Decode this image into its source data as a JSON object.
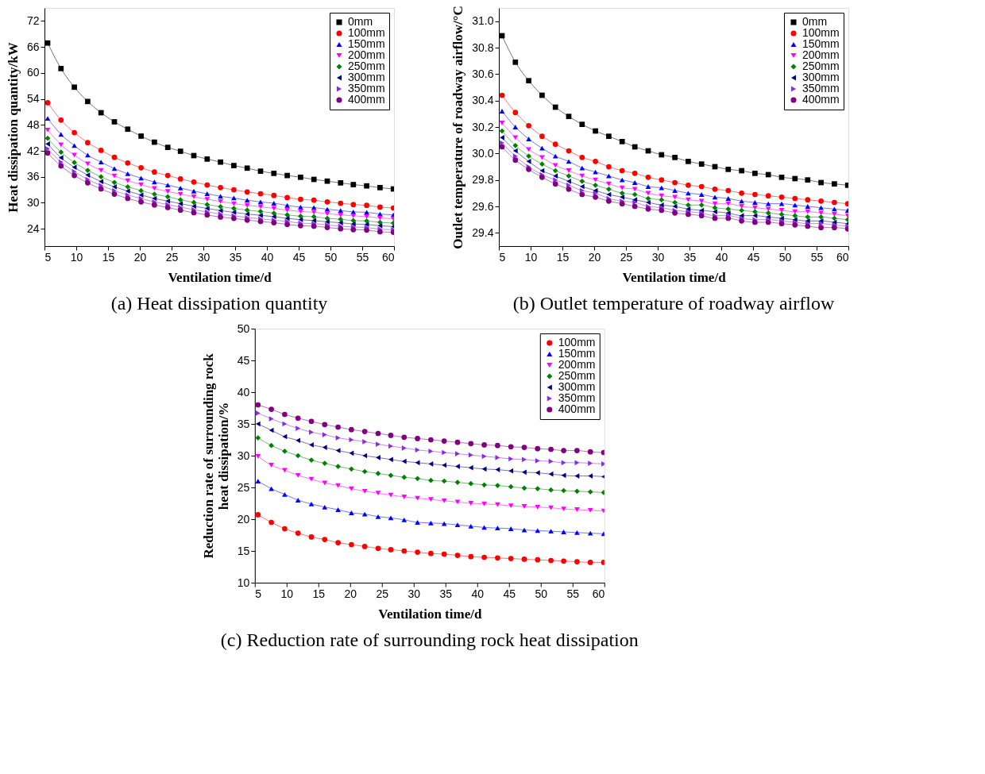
{
  "chart_data": [
    {
      "type": "line",
      "title": "(a) Heat dissipation quantity",
      "xlabel": "Ventilation time/d",
      "ylabel": "Heat dissipation quantity/kW",
      "xlim": [
        5,
        60
      ],
      "xticks": [
        5,
        10,
        15,
        20,
        25,
        30,
        35,
        40,
        45,
        50,
        55,
        60
      ],
      "ylim": [
        20,
        75
      ],
      "yticks": [
        24,
        30,
        36,
        42,
        48,
        54,
        60,
        66,
        72
      ],
      "grid": false,
      "legend": "top right",
      "x": [
        5.5,
        7.6,
        9.7,
        11.8,
        13.9,
        16.0,
        18.1,
        20.2,
        22.3,
        24.4,
        26.4,
        28.5,
        30.6,
        32.7,
        34.8,
        36.9,
        39.0,
        41.1,
        43.2,
        45.3,
        47.4,
        49.5,
        51.6,
        53.6,
        55.7,
        57.8,
        59.9
      ],
      "series": [
        {
          "name": "0mm",
          "color": "#000000",
          "marker": "square",
          "values": [
            66.9,
            61.0,
            56.7,
            53.4,
            50.8,
            48.7,
            47.0,
            45.4,
            44.0,
            42.8,
            41.9,
            40.9,
            40.1,
            39.4,
            38.6,
            38.0,
            37.3,
            36.8,
            36.3,
            35.9,
            35.4,
            35.0,
            34.6,
            34.2,
            33.9,
            33.5,
            33.2
          ]
        },
        {
          "name": "100mm",
          "color": "#ff0000",
          "marker": "circle",
          "values": [
            53.1,
            49.1,
            46.2,
            43.9,
            42.1,
            40.5,
            39.2,
            38.1,
            37.1,
            36.3,
            35.5,
            34.8,
            34.1,
            33.5,
            33.0,
            32.5,
            32.1,
            31.7,
            31.2,
            30.8,
            30.6,
            30.2,
            29.9,
            29.6,
            29.4,
            29.0,
            28.8
          ]
        },
        {
          "name": "150mm",
          "color": "#0000ff",
          "marker": "triangle-up",
          "values": [
            49.5,
            45.8,
            43.2,
            41.0,
            39.4,
            37.9,
            36.7,
            35.7,
            34.8,
            34.1,
            33.4,
            32.7,
            32.1,
            31.5,
            31.1,
            30.6,
            30.2,
            29.9,
            29.4,
            29.0,
            28.9,
            28.5,
            28.2,
            27.9,
            27.8,
            27.4,
            27.2
          ]
        },
        {
          "name": "200mm",
          "color": "#ff00ff",
          "marker": "triangle-down",
          "values": [
            46.8,
            43.4,
            41.0,
            39.0,
            37.5,
            36.2,
            35.1,
            34.2,
            33.3,
            32.6,
            32.0,
            31.4,
            30.8,
            30.3,
            29.8,
            29.4,
            29.1,
            28.7,
            28.3,
            28.0,
            27.8,
            27.5,
            27.2,
            27.0,
            26.8,
            26.5,
            26.3
          ]
        },
        {
          "name": "250mm",
          "color": "#008000",
          "marker": "diamond",
          "values": [
            44.9,
            41.7,
            39.3,
            37.5,
            36.0,
            34.7,
            33.7,
            32.8,
            32.0,
            31.4,
            30.7,
            30.1,
            29.6,
            29.1,
            28.7,
            28.3,
            28.0,
            27.6,
            27.2,
            26.9,
            26.8,
            26.4,
            26.2,
            25.9,
            25.8,
            25.5,
            25.3
          ]
        },
        {
          "name": "300mm",
          "color": "#000080",
          "marker": "triangle-left",
          "values": [
            43.6,
            40.4,
            38.2,
            36.4,
            34.9,
            33.7,
            32.7,
            31.8,
            31.0,
            30.4,
            29.8,
            29.2,
            28.7,
            28.2,
            27.8,
            27.4,
            27.1,
            26.8,
            26.4,
            26.1,
            25.9,
            25.6,
            25.4,
            25.1,
            25.0,
            24.7,
            24.5
          ]
        },
        {
          "name": "350mm",
          "color": "#8a2be2",
          "marker": "triangle-right",
          "values": [
            42.5,
            39.4,
            37.2,
            35.4,
            34.0,
            32.8,
            31.8,
            31.0,
            30.2,
            29.6,
            29.0,
            28.4,
            27.9,
            27.4,
            27.0,
            26.6,
            26.3,
            26.0,
            25.7,
            25.3,
            25.2,
            24.9,
            24.6,
            24.4,
            24.3,
            23.9,
            23.8
          ]
        },
        {
          "name": "400mm",
          "color": "#800080",
          "marker": "circle",
          "values": [
            41.5,
            38.5,
            36.3,
            34.6,
            33.2,
            32.0,
            31.0,
            30.2,
            29.5,
            28.9,
            28.3,
            27.7,
            27.2,
            26.7,
            26.4,
            26.0,
            25.7,
            25.4,
            25.0,
            24.7,
            24.6,
            24.3,
            24.0,
            23.8,
            23.7,
            23.3,
            23.2
          ]
        }
      ]
    },
    {
      "type": "line",
      "title": "(b) Outlet temperature of roadway airflow",
      "xlabel": "Ventilation time/d",
      "ylabel": "Outlet temperature of roadway airflow/°C",
      "xlim": [
        5,
        60
      ],
      "xticks": [
        5,
        10,
        15,
        20,
        25,
        30,
        35,
        40,
        45,
        50,
        55,
        60
      ],
      "ylim": [
        29.3,
        31.1
      ],
      "yticks": [
        {
          "value": 29.4,
          "label": "29.4"
        },
        {
          "value": 29.6,
          "label": "29.6"
        },
        {
          "value": 29.8,
          "label": "29.8"
        },
        {
          "value": 30.0,
          "label": "30.0"
        },
        {
          "value": 30.2,
          "label": "30.2"
        },
        {
          "value": 30.4,
          "label": "30.4"
        },
        {
          "value": 30.6,
          "label": "30.6"
        },
        {
          "value": 30.8,
          "label": "30.8"
        },
        {
          "value": 31.0,
          "label": "31.0"
        }
      ],
      "grid": false,
      "legend": "top right",
      "x": [
        5.5,
        7.6,
        9.7,
        11.8,
        13.9,
        16.0,
        18.1,
        20.2,
        22.3,
        24.4,
        26.4,
        28.5,
        30.6,
        32.7,
        34.8,
        36.9,
        39.0,
        41.1,
        43.2,
        45.3,
        47.4,
        49.5,
        51.6,
        53.6,
        55.7,
        57.8,
        59.9
      ],
      "series": [
        {
          "name": "0mm",
          "color": "#000000",
          "marker": "square",
          "values": [
            30.89,
            30.69,
            30.55,
            30.44,
            30.35,
            30.28,
            30.22,
            30.17,
            30.13,
            30.09,
            30.05,
            30.02,
            29.99,
            29.97,
            29.94,
            29.92,
            29.9,
            29.88,
            29.87,
            29.85,
            29.84,
            29.82,
            29.81,
            29.8,
            29.78,
            29.77,
            29.76
          ]
        },
        {
          "name": "100mm",
          "color": "#ff0000",
          "marker": "circle",
          "values": [
            30.44,
            30.31,
            30.21,
            30.13,
            30.07,
            30.02,
            29.97,
            29.94,
            29.9,
            29.87,
            29.85,
            29.82,
            29.8,
            29.78,
            29.76,
            29.75,
            29.73,
            29.72,
            29.7,
            29.69,
            29.68,
            29.67,
            29.66,
            29.65,
            29.64,
            29.63,
            29.62
          ]
        },
        {
          "name": "150mm",
          "color": "#0000ff",
          "marker": "triangle-up",
          "values": [
            30.32,
            30.2,
            30.11,
            30.04,
            29.98,
            29.94,
            29.89,
            29.86,
            29.83,
            29.8,
            29.78,
            29.75,
            29.74,
            29.72,
            29.7,
            29.69,
            29.67,
            29.66,
            29.64,
            29.63,
            29.62,
            29.62,
            29.61,
            29.6,
            29.59,
            29.58,
            29.57
          ]
        },
        {
          "name": "200mm",
          "color": "#ff00ff",
          "marker": "triangle-down",
          "values": [
            30.23,
            30.12,
            30.03,
            29.97,
            29.91,
            29.87,
            29.83,
            29.8,
            29.77,
            29.74,
            29.73,
            29.7,
            29.68,
            29.67,
            29.65,
            29.64,
            29.62,
            29.62,
            29.6,
            29.59,
            29.58,
            29.57,
            29.56,
            29.56,
            29.55,
            29.54,
            29.53
          ]
        },
        {
          "name": "250mm",
          "color": "#008000",
          "marker": "diamond",
          "values": [
            30.17,
            30.06,
            29.98,
            29.92,
            29.87,
            29.83,
            29.79,
            29.76,
            29.73,
            29.7,
            29.69,
            29.66,
            29.65,
            29.63,
            29.61,
            29.61,
            29.59,
            29.58,
            29.57,
            29.56,
            29.55,
            29.54,
            29.53,
            29.52,
            29.52,
            29.51,
            29.5
          ]
        },
        {
          "name": "300mm",
          "color": "#000080",
          "marker": "triangle-left",
          "values": [
            30.12,
            30.02,
            29.94,
            29.87,
            29.83,
            29.79,
            29.75,
            29.72,
            29.69,
            29.67,
            29.65,
            29.63,
            29.61,
            29.6,
            29.58,
            29.57,
            29.56,
            29.55,
            29.53,
            29.53,
            29.52,
            29.51,
            29.5,
            29.49,
            29.49,
            29.48,
            29.47
          ]
        },
        {
          "name": "350mm",
          "color": "#8a2be2",
          "marker": "triangle-right",
          "values": [
            30.08,
            29.98,
            29.9,
            29.84,
            29.8,
            29.76,
            29.72,
            29.7,
            29.66,
            29.64,
            29.63,
            29.6,
            29.59,
            29.57,
            29.56,
            29.55,
            29.53,
            29.53,
            29.51,
            29.5,
            29.5,
            29.49,
            29.48,
            29.47,
            29.47,
            29.46,
            29.45
          ]
        },
        {
          "name": "400mm",
          "color": "#800080",
          "marker": "circle",
          "values": [
            30.05,
            29.95,
            29.88,
            29.82,
            29.77,
            29.73,
            29.69,
            29.67,
            29.64,
            29.62,
            29.6,
            29.58,
            29.57,
            29.55,
            29.54,
            29.53,
            29.51,
            29.51,
            29.49,
            29.48,
            29.48,
            29.47,
            29.46,
            29.45,
            29.44,
            29.44,
            29.43
          ]
        }
      ]
    },
    {
      "type": "line",
      "title": "(c) Reduction rate of surrounding rock heat dissipation",
      "xlabel": "Ventilation time/d",
      "ylabel": "Reduction rate of surrounding rock\nheat dissipation/%",
      "xlim": [
        5,
        60
      ],
      "xticks": [
        5,
        10,
        15,
        20,
        25,
        30,
        35,
        40,
        45,
        50,
        55,
        60
      ],
      "ylim": [
        10,
        50
      ],
      "yticks": [
        10,
        15,
        20,
        25,
        30,
        35,
        40,
        45,
        50
      ],
      "grid": false,
      "legend": "top right",
      "x": [
        5.5,
        7.6,
        9.7,
        11.8,
        13.9,
        16.0,
        18.1,
        20.2,
        22.3,
        24.4,
        26.4,
        28.5,
        30.6,
        32.7,
        34.8,
        36.9,
        39.0,
        41.1,
        43.2,
        45.3,
        47.4,
        49.5,
        51.6,
        53.6,
        55.7,
        57.8,
        59.9
      ],
      "series": [
        {
          "name": "100mm",
          "color": "#ff0000",
          "marker": "circle",
          "values": [
            20.7,
            19.5,
            18.5,
            17.8,
            17.2,
            16.8,
            16.3,
            16.0,
            15.7,
            15.4,
            15.2,
            15.0,
            14.8,
            14.6,
            14.5,
            14.3,
            14.1,
            14.0,
            13.9,
            13.8,
            13.7,
            13.6,
            13.5,
            13.4,
            13.3,
            13.2,
            13.2
          ]
        },
        {
          "name": "150mm",
          "color": "#0000ff",
          "marker": "triangle-up",
          "values": [
            26.0,
            24.8,
            23.9,
            23.0,
            22.4,
            21.9,
            21.5,
            21.0,
            20.8,
            20.4,
            20.2,
            19.9,
            19.5,
            19.4,
            19.3,
            19.1,
            18.9,
            18.7,
            18.6,
            18.5,
            18.3,
            18.2,
            18.1,
            18.0,
            17.9,
            17.8,
            17.7
          ]
        },
        {
          "name": "200mm",
          "color": "#ff00ff",
          "marker": "triangle-down",
          "values": [
            29.9,
            28.5,
            27.7,
            26.9,
            26.3,
            25.7,
            25.3,
            24.8,
            24.4,
            24.1,
            23.8,
            23.5,
            23.3,
            23.1,
            22.9,
            22.7,
            22.5,
            22.4,
            22.3,
            22.1,
            22.0,
            21.9,
            21.8,
            21.6,
            21.5,
            21.4,
            21.3
          ]
        },
        {
          "name": "250mm",
          "color": "#008000",
          "marker": "diamond",
          "values": [
            32.8,
            31.6,
            30.7,
            30.0,
            29.3,
            28.8,
            28.3,
            27.9,
            27.5,
            27.2,
            26.9,
            26.6,
            26.4,
            26.1,
            26.0,
            25.8,
            25.6,
            25.4,
            25.3,
            25.1,
            24.9,
            24.8,
            24.6,
            24.5,
            24.4,
            24.3,
            24.2
          ]
        },
        {
          "name": "300mm",
          "color": "#000080",
          "marker": "triangle-left",
          "values": [
            35.0,
            34.0,
            33.0,
            32.4,
            31.7,
            31.3,
            30.8,
            30.4,
            30.0,
            29.7,
            29.4,
            29.1,
            28.9,
            28.7,
            28.5,
            28.3,
            28.1,
            27.9,
            27.8,
            27.6,
            27.4,
            27.3,
            27.1,
            26.9,
            26.8,
            26.8,
            26.7
          ]
        },
        {
          "name": "350mm",
          "color": "#8a2be2",
          "marker": "triangle-right",
          "values": [
            36.7,
            35.8,
            35.0,
            34.3,
            33.7,
            33.3,
            32.8,
            32.5,
            32.2,
            31.8,
            31.5,
            31.2,
            30.9,
            30.7,
            30.5,
            30.3,
            30.1,
            29.9,
            29.7,
            29.5,
            29.4,
            29.2,
            29.1,
            28.9,
            28.9,
            28.8,
            28.7
          ]
        },
        {
          "name": "400mm",
          "color": "#800080",
          "marker": "circle",
          "values": [
            38.0,
            37.3,
            36.5,
            35.9,
            35.4,
            34.9,
            34.5,
            34.1,
            33.8,
            33.5,
            33.2,
            32.9,
            32.7,
            32.5,
            32.3,
            32.1,
            31.9,
            31.7,
            31.6,
            31.4,
            31.3,
            31.1,
            31.0,
            30.8,
            30.8,
            30.6,
            30.5
          ]
        }
      ]
    }
  ]
}
